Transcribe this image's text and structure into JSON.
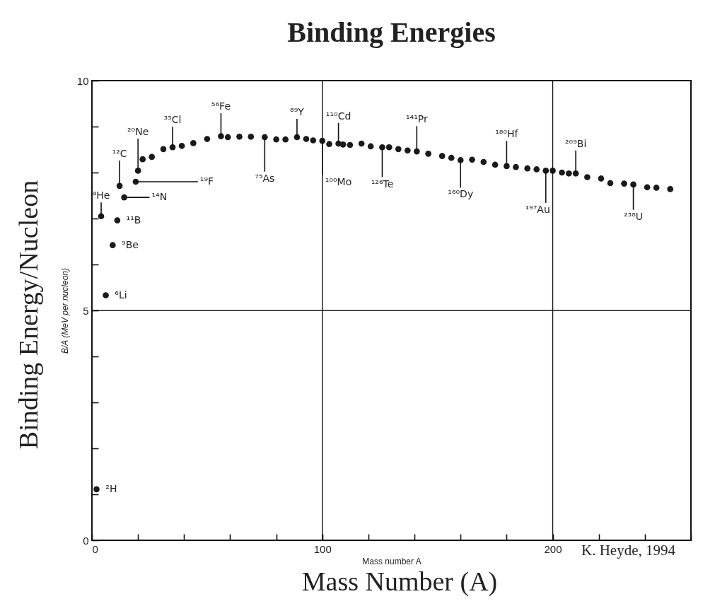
{
  "chart_data": {
    "type": "scatter",
    "title": "Binding Energies",
    "xlabel": "Mass number A",
    "ylabel": "B/A (MeV per nucleon)",
    "x": [
      2,
      4,
      6,
      9,
      11,
      12,
      14,
      19,
      20,
      22,
      26,
      31,
      35,
      39,
      44,
      50,
      56,
      59,
      64,
      69,
      75,
      80,
      84,
      89,
      93,
      96,
      100,
      103,
      107,
      109,
      112,
      117,
      121,
      126,
      129,
      133,
      137,
      141,
      146,
      152,
      156,
      160,
      165,
      170,
      175,
      180,
      184,
      189,
      193,
      197,
      200,
      204,
      207,
      210,
      215,
      221,
      225,
      231,
      235,
      241,
      245,
      251
    ],
    "series": [
      {
        "color": "#1a1a1a",
        "values": [
          1.11,
          7.05,
          5.33,
          6.42,
          6.96,
          7.71,
          7.46,
          7.8,
          8.04,
          8.29,
          8.34,
          8.51,
          8.55,
          8.58,
          8.64,
          8.73,
          8.79,
          8.77,
          8.78,
          8.78,
          8.77,
          8.72,
          8.72,
          8.77,
          8.73,
          8.7,
          8.69,
          8.62,
          8.63,
          8.61,
          8.6,
          8.63,
          8.57,
          8.55,
          8.55,
          8.51,
          8.48,
          8.46,
          8.41,
          8.36,
          8.32,
          8.27,
          8.28,
          8.23,
          8.17,
          8.14,
          8.12,
          8.09,
          8.07,
          8.04,
          8.04,
          8.0,
          7.98,
          7.98,
          7.9,
          7.87,
          7.77,
          7.76,
          7.74,
          7.68,
          7.67,
          7.64
        ]
      }
    ],
    "marker": "circle",
    "xlim": [
      0,
      260
    ],
    "xticks": [
      0,
      {
        "value": 20,
        "label": null
      },
      {
        "value": 40,
        "label": null
      },
      {
        "value": 60,
        "label": null
      },
      {
        "value": 80,
        "label": null
      },
      100,
      {
        "value": 120,
        "label": null
      },
      {
        "value": 140,
        "label": null
      },
      {
        "value": 160,
        "label": null
      },
      {
        "value": 180,
        "label": null
      },
      200,
      {
        "value": 220,
        "label": null
      },
      {
        "value": 240,
        "label": null
      },
      {
        "value": 260,
        "label": null
      }
    ],
    "ylim": [
      0,
      10
    ],
    "yticks": [
      0,
      {
        "value": 1,
        "label": null
      },
      {
        "value": 2,
        "label": null
      },
      {
        "value": 3,
        "label": null
      },
      {
        "value": 4,
        "label": null
      },
      5,
      {
        "value": 6,
        "label": null
      },
      {
        "value": 7,
        "label": null
      },
      {
        "value": 8,
        "label": null
      },
      {
        "value": 9,
        "label": null
      },
      10
    ],
    "grid": true,
    "annotations": [
      {
        "text": "²H",
        "x": 2,
        "y": 1.11
      },
      {
        "text": "⁴He",
        "x": 4,
        "y": 7.05
      },
      {
        "text": "⁶Li",
        "x": 6,
        "y": 5.33
      },
      {
        "text": "⁹Be",
        "x": 9,
        "y": 6.42
      },
      {
        "text": "¹¹B",
        "x": 11,
        "y": 6.96
      },
      {
        "text": "¹²C",
        "x": 12,
        "y": 7.71
      },
      {
        "text": "¹⁴N",
        "x": 14,
        "y": 7.46
      },
      {
        "text": "¹⁹F",
        "x": 19,
        "y": 7.8
      },
      {
        "text": "²⁰Ne",
        "x": 20,
        "y": 8.04
      },
      {
        "text": "³⁵Cl",
        "x": 35,
        "y": 8.55
      },
      {
        "text": "⁵⁶Fe",
        "x": 56,
        "y": 8.79
      },
      {
        "text": "⁷⁵As",
        "x": 75,
        "y": 8.77
      },
      {
        "text": "⁸⁹Y",
        "x": 89,
        "y": 8.77
      },
      {
        "text": "¹⁰⁰Mo",
        "x": 100,
        "y": 8.69
      },
      {
        "text": "¹¹⁰Cd",
        "x": 107,
        "y": 8.63
      },
      {
        "text": "¹²⁶Te",
        "x": 126,
        "y": 8.55
      },
      {
        "text": "¹⁴¹Pr",
        "x": 141,
        "y": 8.46
      },
      {
        "text": "¹⁶⁰Dy",
        "x": 160,
        "y": 8.27
      },
      {
        "text": "¹⁸⁰Hf",
        "x": 180,
        "y": 8.14
      },
      {
        "text": "¹⁹⁷Au",
        "x": 197,
        "y": 8.04
      },
      {
        "text": "²⁰⁹Bi",
        "x": 210,
        "y": 7.98
      },
      {
        "text": "²³⁸U",
        "x": 235,
        "y": 7.74
      },
      "Binding Energy/Nucleon",
      "Mass Number (A)",
      "K. Heyde, 1994"
    ]
  }
}
